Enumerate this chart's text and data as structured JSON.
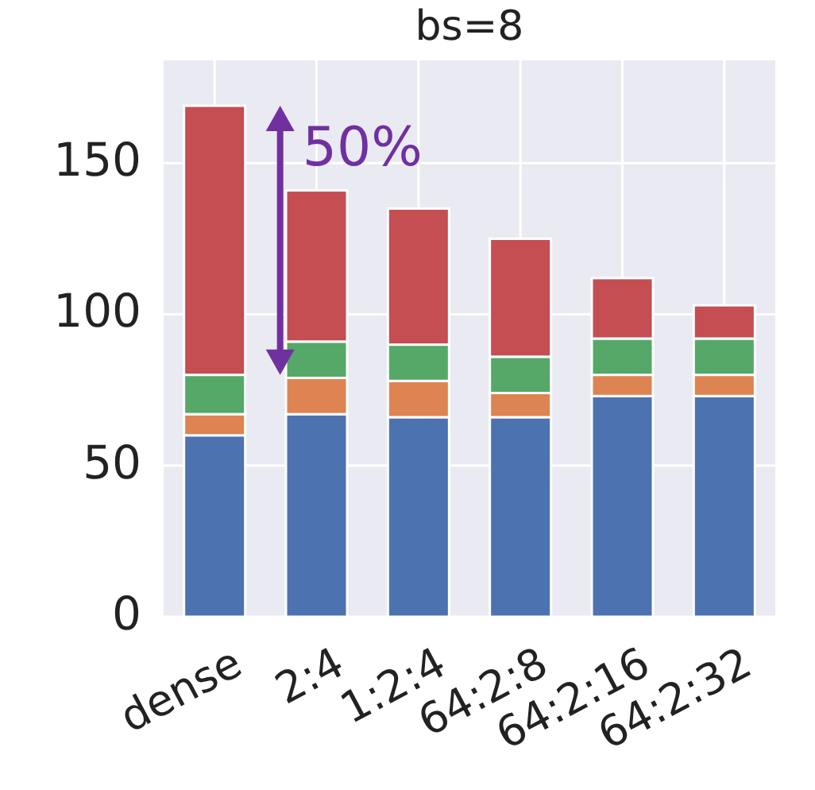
{
  "chart_data": {
    "type": "bar",
    "title": "bs=8",
    "stacked": true,
    "categories": [
      "dense",
      "2:4",
      "1:2:4",
      "64:2:8",
      "64:2:16",
      "64:2:32"
    ],
    "series": [
      {
        "color": "#4c72b0",
        "values": [
          60,
          67,
          66,
          66,
          73,
          73
        ]
      },
      {
        "color": "#dd8452",
        "values": [
          7,
          12,
          12,
          8,
          7,
          7
        ]
      },
      {
        "color": "#55a868",
        "values": [
          13,
          12,
          12,
          12,
          12,
          12
        ]
      },
      {
        "color": "#c44e52",
        "values": [
          89,
          50,
          45,
          39,
          20,
          11
        ]
      }
    ],
    "ylim": [
      0,
      184
    ],
    "yticks": [
      0,
      50,
      100,
      150
    ],
    "grid": true,
    "annotations": [
      {
        "text": "50%",
        "x": "dense",
        "y": 169
      }
    ]
  }
}
